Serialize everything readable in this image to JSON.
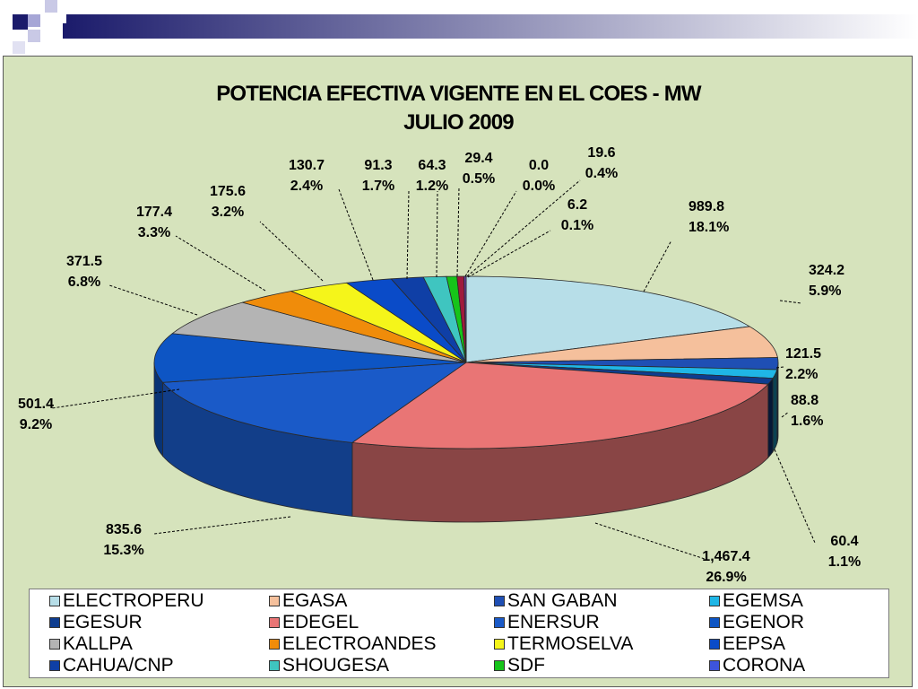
{
  "chart_data": {
    "type": "pie",
    "title": "POTENCIA EFECTIVA VIGENTE EN EL COES - MW",
    "subtitle": "JULIO 2009",
    "legend_position": "bottom",
    "slices": [
      {
        "name": "ELECTROPERU",
        "value": 989.8,
        "value_label": "989.8",
        "percent_label": "18.1%",
        "color": "#b7dee8"
      },
      {
        "name": "EGASA",
        "value": 324.2,
        "value_label": "324.2",
        "percent_label": "5.9%",
        "color": "#f5c09c"
      },
      {
        "name": "SAN GABAN",
        "value": 121.5,
        "value_label": "121.5",
        "percent_label": "2.2%",
        "color": "#1f4fb4"
      },
      {
        "name": "EGEMSA",
        "value": 88.8,
        "value_label": "88.8",
        "percent_label": "1.6%",
        "color": "#1fb6e6"
      },
      {
        "name": "EGESUR",
        "value": 60.4,
        "value_label": "60.4",
        "percent_label": "1.1%",
        "color": "#0e3d8f"
      },
      {
        "name": "EDEGEL",
        "value": 1467.4,
        "value_label": "1,467.4",
        "percent_label": "26.9%",
        "color": "#e97575"
      },
      {
        "name": "ENERSUR",
        "value": 835.6,
        "value_label": "835.6",
        "percent_label": "15.3%",
        "color": "#1a5ac8"
      },
      {
        "name": "EGENOR",
        "value": 501.4,
        "value_label": "501.4",
        "percent_label": "9.2%",
        "color": "#0d55c4"
      },
      {
        "name": "KALLPA",
        "value": 371.5,
        "value_label": "371.5",
        "percent_label": "6.8%",
        "color": "#b4b4b4"
      },
      {
        "name": "ELECTROANDES",
        "value": 177.4,
        "value_label": "177.4",
        "percent_label": "3.3%",
        "color": "#f08c0a"
      },
      {
        "name": "TERMOSELVA",
        "value": 175.6,
        "value_label": "175.6",
        "percent_label": "3.2%",
        "color": "#f5f51a"
      },
      {
        "name": "EEPSA",
        "value": 130.7,
        "value_label": "130.7",
        "percent_label": "2.4%",
        "color": "#0a4bc8"
      },
      {
        "name": "CAHUA/CNP",
        "value": 91.3,
        "value_label": "91.3",
        "percent_label": "1.7%",
        "color": "#0f3fa6"
      },
      {
        "name": "SHOUGESA",
        "value": 64.3,
        "value_label": "64.3",
        "percent_label": "1.2%",
        "color": "#3fc5c0"
      },
      {
        "name": "SDF",
        "value": 29.4,
        "value_label": "29.4",
        "percent_label": "0.5%",
        "color": "#16c41a"
      },
      {
        "name": "CORONA",
        "value": 0.0,
        "value_label": "0.0",
        "percent_label": "0.0%",
        "color": "#3d54dc"
      },
      {
        "name": "",
        "value": 19.6,
        "value_label": "19.6",
        "percent_label": "0.4%",
        "color": "#a01a3c"
      },
      {
        "name": "",
        "value": 6.2,
        "value_label": "6.2",
        "percent_label": "0.1%",
        "color": "#6b3fa0"
      }
    ]
  },
  "legend": {
    "items": [
      {
        "label": "ELECTROPERU",
        "color": "#b7dee8"
      },
      {
        "label": "EGASA",
        "color": "#f5c09c"
      },
      {
        "label": "SAN GABAN",
        "color": "#1f4fb4"
      },
      {
        "label": "EGEMSA",
        "color": "#1fb6e6"
      },
      {
        "label": "EGESUR",
        "color": "#0e3d8f"
      },
      {
        "label": "EDEGEL",
        "color": "#e97575"
      },
      {
        "label": "ENERSUR",
        "color": "#1a5ac8"
      },
      {
        "label": "EGENOR",
        "color": "#0d55c4"
      },
      {
        "label": "KALLPA",
        "color": "#b4b4b4"
      },
      {
        "label": "ELECTROANDES",
        "color": "#f08c0a"
      },
      {
        "label": "TERMOSELVA",
        "color": "#f5f51a"
      },
      {
        "label": "EEPSA",
        "color": "#0a4bc8"
      },
      {
        "label": "CAHUA/CNP",
        "color": "#0f3fa6"
      },
      {
        "label": "SHOUGESA",
        "color": "#3fc5c0"
      },
      {
        "label": "SDF",
        "color": "#16c41a"
      },
      {
        "label": "CORONA",
        "color": "#3d54dc"
      }
    ]
  },
  "colors": {
    "chart_background": "#d6e3bc",
    "header_navy": "#1b1b6b",
    "header_gradient_end": "#ffffff"
  }
}
